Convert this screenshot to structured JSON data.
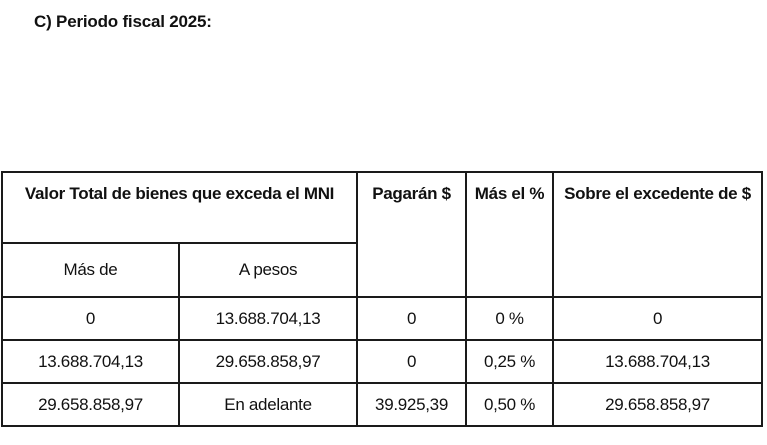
{
  "heading": "C)  Periodo fiscal 2025:",
  "table": {
    "header": {
      "group": "Valor Total de bienes que exceda el MNI",
      "sub_from": "Más de",
      "sub_to": "A pesos",
      "pay": "Pagarán $",
      "plus_pct": "Más el %",
      "over_excess": "Sobre el excedente de $"
    },
    "rows": [
      [
        "0",
        "13.688.704,13",
        "0",
        "0 %",
        "0"
      ],
      [
        "13.688.704,13",
        "29.658.858,97",
        "0",
        "0,25 %",
        "13.688.704,13"
      ],
      [
        "29.658.858,97",
        "En adelante",
        "39.925,39",
        "0,50 %",
        "29.658.858,97"
      ]
    ]
  }
}
